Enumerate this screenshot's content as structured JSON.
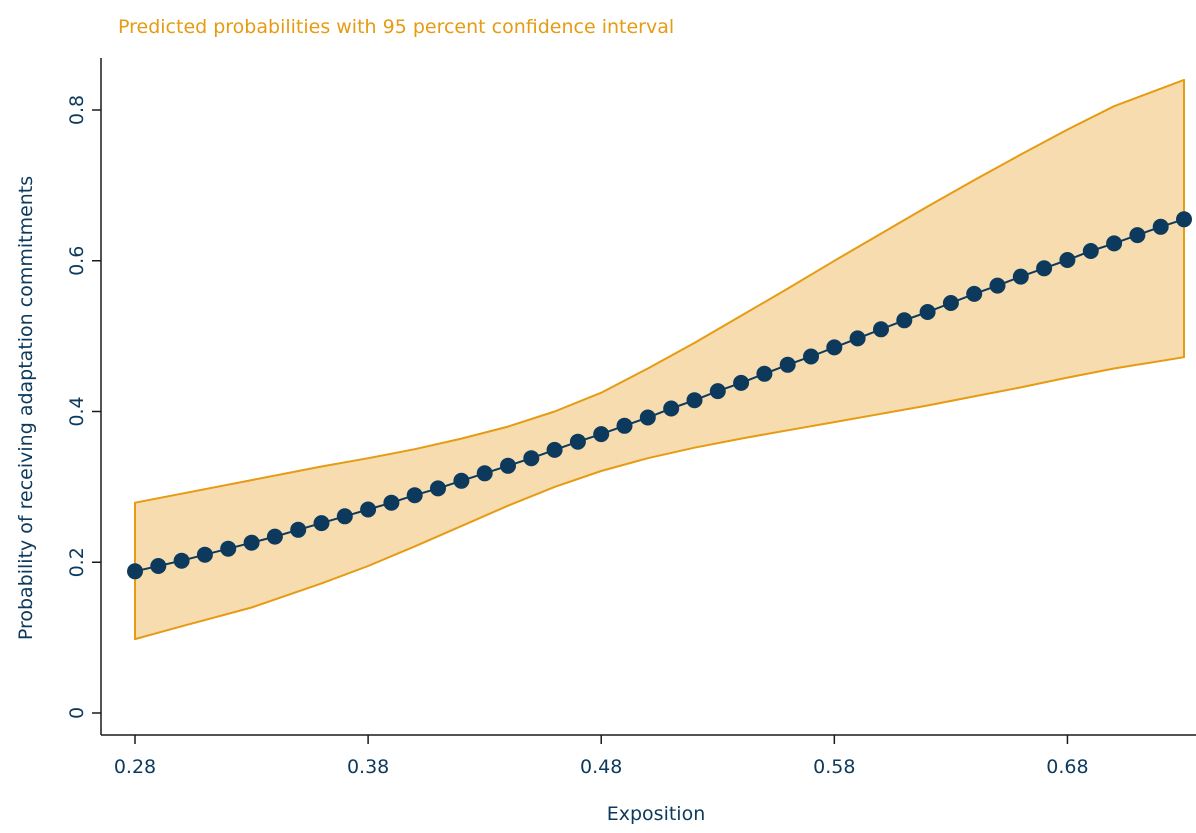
{
  "chart_data": {
    "type": "line",
    "title": "Predicted probabilities with 95 percent confidence interval",
    "xlabel": "Exposition",
    "ylabel": "Probability of receiving adaptation commitments",
    "xlim": [
      0.28,
      0.73
    ],
    "ylim": [
      0,
      0.8
    ],
    "xticks": [
      0.28,
      0.38,
      0.48,
      0.58,
      0.68
    ],
    "xtick_labels": [
      "0.28",
      "0.38",
      "0.48",
      "0.58",
      "0.68"
    ],
    "yticks": [
      0,
      0.2,
      0.4,
      0.6,
      0.8
    ],
    "ytick_labels": [
      "0",
      "0.2",
      "0.4",
      "0.6",
      "0.8"
    ],
    "grid": false,
    "series": [
      {
        "role": "prediction",
        "x": [
          0.28,
          0.29,
          0.3,
          0.31,
          0.32,
          0.33,
          0.34,
          0.35,
          0.36,
          0.37,
          0.38,
          0.39,
          0.4,
          0.41,
          0.42,
          0.43,
          0.44,
          0.45,
          0.46,
          0.47,
          0.48,
          0.49,
          0.5,
          0.51,
          0.52,
          0.53,
          0.54,
          0.55,
          0.56,
          0.57,
          0.58,
          0.59,
          0.6,
          0.61,
          0.62,
          0.63,
          0.64,
          0.65,
          0.66,
          0.67,
          0.68,
          0.69,
          0.7,
          0.71,
          0.72,
          0.73
        ],
        "values": [
          0.188,
          0.195,
          0.202,
          0.21,
          0.218,
          0.226,
          0.234,
          0.243,
          0.252,
          0.261,
          0.27,
          0.279,
          0.289,
          0.298,
          0.308,
          0.318,
          0.328,
          0.338,
          0.349,
          0.36,
          0.37,
          0.381,
          0.392,
          0.404,
          0.415,
          0.427,
          0.438,
          0.45,
          0.462,
          0.473,
          0.485,
          0.497,
          0.509,
          0.521,
          0.532,
          0.544,
          0.556,
          0.567,
          0.579,
          0.59,
          0.601,
          0.613,
          0.623,
          0.634,
          0.645,
          0.655
        ]
      },
      {
        "role": "ci-upper",
        "x": [
          0.28,
          0.3,
          0.33,
          0.36,
          0.38,
          0.4,
          0.42,
          0.44,
          0.46,
          0.48,
          0.5,
          0.52,
          0.54,
          0.56,
          0.58,
          0.6,
          0.62,
          0.64,
          0.66,
          0.68,
          0.7,
          0.73
        ],
        "values": [
          0.279,
          0.291,
          0.309,
          0.327,
          0.338,
          0.35,
          0.364,
          0.38,
          0.4,
          0.425,
          0.457,
          0.491,
          0.527,
          0.563,
          0.6,
          0.636,
          0.672,
          0.707,
          0.741,
          0.774,
          0.805,
          0.84
        ]
      },
      {
        "role": "ci-lower",
        "x": [
          0.28,
          0.3,
          0.33,
          0.36,
          0.38,
          0.4,
          0.42,
          0.44,
          0.46,
          0.48,
          0.5,
          0.52,
          0.54,
          0.56,
          0.58,
          0.6,
          0.62,
          0.64,
          0.66,
          0.68,
          0.7,
          0.73
        ],
        "values": [
          0.098,
          0.115,
          0.14,
          0.172,
          0.195,
          0.221,
          0.248,
          0.275,
          0.3,
          0.321,
          0.338,
          0.352,
          0.364,
          0.375,
          0.386,
          0.397,
          0.408,
          0.42,
          0.432,
          0.445,
          0.457,
          0.472
        ]
      }
    ],
    "colors": {
      "line": "#0d3a5c",
      "marker": "#0d3a5c",
      "ci_fill": "#f7dcb0",
      "ci_stroke": "#e69b12",
      "title": "#e69b12",
      "axis_text": "#0d3a5c"
    }
  }
}
